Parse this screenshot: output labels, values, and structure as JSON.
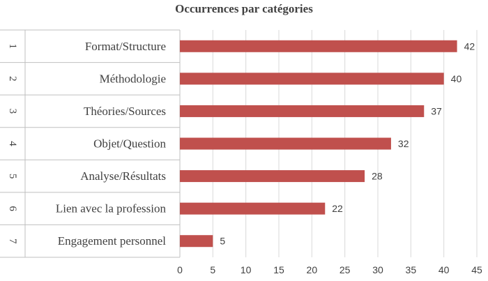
{
  "chart_data": {
    "type": "bar",
    "orientation": "horizontal",
    "title": "Occurrences par catégories",
    "ranks": [
      "1",
      "2",
      "3",
      "4",
      "5",
      "6",
      "7"
    ],
    "categories": [
      "Format/Structure",
      "Méthodologie",
      "Théories/Sources",
      "Objet/Question",
      "Analyse/Résultats",
      "Lien avec la profession",
      "Engagement personnel"
    ],
    "values": [
      42,
      40,
      37,
      32,
      28,
      22,
      5
    ],
    "xlim": [
      0,
      45
    ],
    "xticks": [
      0,
      5,
      10,
      15,
      20,
      25,
      30,
      35,
      40,
      45
    ],
    "grid": "vertical",
    "legend": "none",
    "bar_color": "#c0504d",
    "grid_color": "#d9d9d9"
  }
}
